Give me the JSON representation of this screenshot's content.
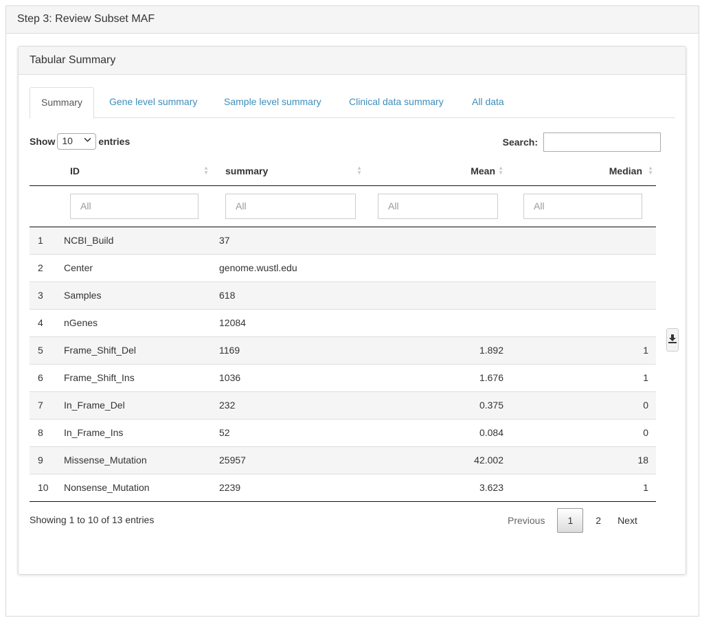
{
  "step_title": "Step 3: Review Subset MAF",
  "panel_title": "Tabular Summary",
  "tabs": [
    {
      "label": "Summary",
      "active": true
    },
    {
      "label": "Gene level summary"
    },
    {
      "label": "Sample level summary"
    },
    {
      "label": "Clinical data summary"
    },
    {
      "label": "All data"
    }
  ],
  "length_menu": {
    "show": "Show",
    "value": "10",
    "entries": "entries"
  },
  "search": {
    "label": "Search:",
    "value": ""
  },
  "columns": [
    "ID",
    "summary",
    "Mean",
    "Median"
  ],
  "filter_placeholder": "All",
  "rows": [
    {
      "idx": "1",
      "id": "NCBI_Build",
      "summary": "37",
      "mean": "",
      "median": ""
    },
    {
      "idx": "2",
      "id": "Center",
      "summary": "genome.wustl.edu",
      "mean": "",
      "median": ""
    },
    {
      "idx": "3",
      "id": "Samples",
      "summary": "618",
      "mean": "",
      "median": ""
    },
    {
      "idx": "4",
      "id": "nGenes",
      "summary": "12084",
      "mean": "",
      "median": ""
    },
    {
      "idx": "5",
      "id": "Frame_Shift_Del",
      "summary": "1169",
      "mean": "1.892",
      "median": "1"
    },
    {
      "idx": "6",
      "id": "Frame_Shift_Ins",
      "summary": "1036",
      "mean": "1.676",
      "median": "1"
    },
    {
      "idx": "7",
      "id": "In_Frame_Del",
      "summary": "232",
      "mean": "0.375",
      "median": "0"
    },
    {
      "idx": "8",
      "id": "In_Frame_Ins",
      "summary": "52",
      "mean": "0.084",
      "median": "0"
    },
    {
      "idx": "9",
      "id": "Missense_Mutation",
      "summary": "25957",
      "mean": "42.002",
      "median": "18"
    },
    {
      "idx": "10",
      "id": "Nonsense_Mutation",
      "summary": "2239",
      "mean": "3.623",
      "median": "1"
    }
  ],
  "info": "Showing 1 to 10 of 13 entries",
  "pagination": {
    "previous": "Previous",
    "pages": [
      "1",
      "2"
    ],
    "current": "1",
    "next": "Next"
  },
  "icons": {
    "download": "download-icon",
    "sort": "sort-icon",
    "dropdown": "chevron-down-icon"
  }
}
